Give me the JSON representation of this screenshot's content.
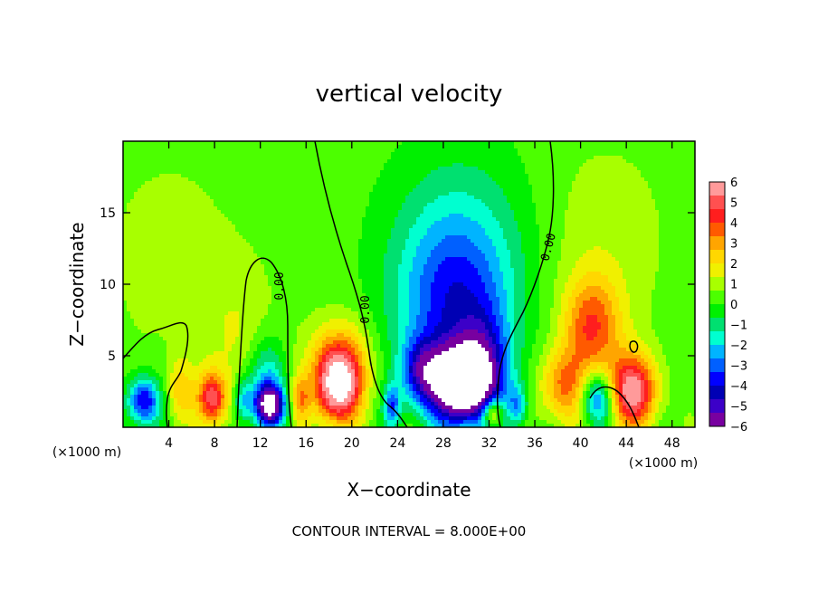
{
  "chart_data": {
    "type": "heatmap",
    "title": "vertical velocity",
    "xlabel": "X−coordinate",
    "ylabel": "Z−coordinate",
    "x_unit_left": "(×1000 m)",
    "x_unit_right": "(×1000 m)",
    "footer": "CONTOUR INTERVAL = 8.000E+00",
    "xlim": [
      0,
      50
    ],
    "ylim": [
      0,
      20
    ],
    "x_ticks": [
      4,
      8,
      12,
      16,
      20,
      24,
      28,
      32,
      36,
      40,
      44,
      48
    ],
    "y_ticks": [
      5,
      10,
      15
    ],
    "colorbar": {
      "min": -6,
      "max": 6,
      "labels": [
        "6",
        "5",
        "4",
        "3",
        "2",
        "1",
        "0",
        "−1",
        "−2",
        "−3",
        "−4",
        "−5",
        "−6"
      ],
      "colors": [
        "#ff9a9a",
        "#ff5050",
        "#ff1e1e",
        "#ff5a00",
        "#ffa500",
        "#ffd700",
        "#f0f000",
        "#a8ff00",
        "#4cff00",
        "#00f000",
        "#00e070",
        "#00ffd0",
        "#00b4ff",
        "#0060ff",
        "#0000ff",
        "#0000b4",
        "#3c00c8",
        "#7800a0"
      ]
    },
    "contour_labels": [
      "0.00",
      "0.00",
      "0.00"
    ],
    "features": [
      {
        "x": 29.5,
        "z": 3.0,
        "w": -8.0,
        "sx": 2.0,
        "sz": 1.8
      },
      {
        "x": 29.0,
        "z": 8.0,
        "w": -3.5,
        "sx": 3.5,
        "sz": 4.5
      },
      {
        "x": 26.0,
        "z": 4.0,
        "w": -3.0,
        "sx": 1.2,
        "sz": 1.5
      },
      {
        "x": 31.5,
        "z": 4.5,
        "w": -2.5,
        "sx": 1.5,
        "sz": 2.5
      },
      {
        "x": 29.5,
        "z": 13.0,
        "w": -1.3,
        "sx": 4.5,
        "sz": 5.0
      },
      {
        "x": 12.8,
        "z": 1.5,
        "w": -7.0,
        "sx": 0.9,
        "sz": 1.0
      },
      {
        "x": 12.5,
        "z": 3.5,
        "w": -2.5,
        "sx": 1.2,
        "sz": 2.0
      },
      {
        "x": 1.8,
        "z": 1.8,
        "w": -4.5,
        "sx": 1.0,
        "sz": 1.2
      },
      {
        "x": 10.5,
        "z": 1.8,
        "w": -2.5,
        "sx": 0.6,
        "sz": 1.2
      },
      {
        "x": 23.5,
        "z": 1.5,
        "w": -3.0,
        "sx": 0.5,
        "sz": 1.0
      },
      {
        "x": 34.5,
        "z": 1.5,
        "w": -2.5,
        "sx": 0.6,
        "sz": 1.0
      },
      {
        "x": 41.5,
        "z": 2.0,
        "w": -4.0,
        "sx": 1.0,
        "sz": 1.3
      },
      {
        "x": 18.8,
        "z": 2.8,
        "w": 6.5,
        "sx": 1.4,
        "sz": 1.8
      },
      {
        "x": 19.0,
        "z": 5.0,
        "w": 2.2,
        "sx": 2.0,
        "sz": 2.0
      },
      {
        "x": 7.8,
        "z": 2.0,
        "w": 4.5,
        "sx": 0.9,
        "sz": 1.3
      },
      {
        "x": 44.5,
        "z": 2.5,
        "w": 5.5,
        "sx": 1.5,
        "sz": 1.8
      },
      {
        "x": 41.0,
        "z": 7.0,
        "w": 3.5,
        "sx": 1.8,
        "sz": 2.5
      },
      {
        "x": 38.5,
        "z": 2.8,
        "w": 3.0,
        "sx": 1.5,
        "sz": 1.8
      },
      {
        "x": 32.3,
        "z": 1.0,
        "w": 4.0,
        "sx": 0.6,
        "sz": 0.7
      },
      {
        "x": 15.5,
        "z": 2.0,
        "w": 2.5,
        "sx": 0.6,
        "sz": 1.2
      },
      {
        "x": 5.0,
        "z": 2.5,
        "w": 2.0,
        "sx": 0.8,
        "sz": 1.5
      },
      {
        "x": 10.0,
        "z": 6.0,
        "w": 1.0,
        "sx": 2.5,
        "sz": 4.0
      },
      {
        "x": 42.0,
        "z": 13.0,
        "w": 0.8,
        "sx": 4.0,
        "sz": 5.0
      },
      {
        "x": 4.0,
        "z": 12.0,
        "w": 0.7,
        "sx": 4.0,
        "sz": 5.0
      }
    ]
  }
}
